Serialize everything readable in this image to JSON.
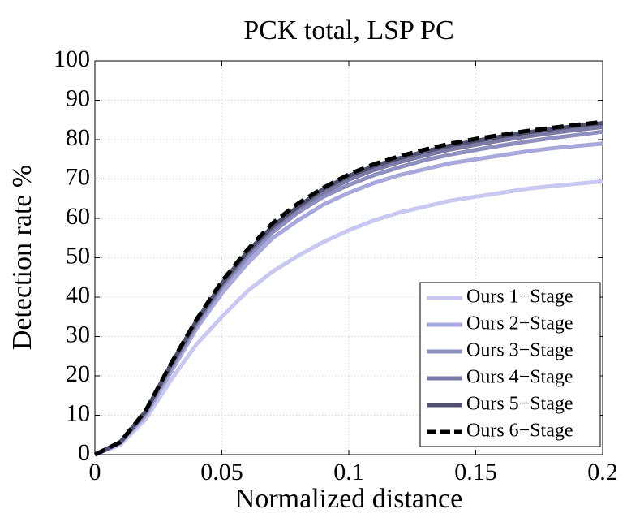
{
  "chart_data": {
    "type": "line",
    "title": "PCK total, LSP PC",
    "xlabel": "Normalized distance",
    "ylabel": "Detection rate %",
    "x": [
      0,
      0.01,
      0.02,
      0.03,
      0.04,
      0.05,
      0.06,
      0.07,
      0.08,
      0.09,
      0.1,
      0.11,
      0.12,
      0.13,
      0.14,
      0.15,
      0.16,
      0.17,
      0.18,
      0.19,
      0.2
    ],
    "series": [
      {
        "name": "Ours 1−Stage",
        "color": "#c8c8f0",
        "values": [
          0,
          2.5,
          9,
          19,
          28,
          35,
          41.5,
          46.5,
          50.5,
          54,
          57,
          59.5,
          61.5,
          63,
          64.5,
          65.5,
          66.5,
          67.5,
          68.2,
          68.8,
          69.4
        ]
      },
      {
        "name": "Ours 2−Stage",
        "color": "#a8a8dc",
        "values": [
          0,
          3,
          10,
          21,
          32,
          41,
          48.5,
          55,
          59.5,
          63.5,
          66.5,
          69,
          71,
          72.5,
          74,
          75,
          76,
          77,
          77.8,
          78.4,
          79
        ]
      },
      {
        "name": "Ours 3−Stage",
        "color": "#9090c0",
        "values": [
          0,
          3,
          10.5,
          22,
          33,
          42.5,
          50,
          56.5,
          61.5,
          65.5,
          68.5,
          71,
          73,
          74.8,
          76.2,
          77.4,
          78.5,
          79.5,
          80.4,
          81.2,
          82
        ]
      },
      {
        "name": "Ours 4−Stage",
        "color": "#7a7aa4",
        "values": [
          0,
          3,
          11,
          22.5,
          33.5,
          43,
          51,
          57.5,
          62.5,
          66.5,
          69.8,
          72.3,
          74.3,
          76,
          77.5,
          78.7,
          79.8,
          80.8,
          81.7,
          82.5,
          83.2
        ]
      },
      {
        "name": "Ours 5−Stage",
        "color": "#505070",
        "values": [
          0,
          3.2,
          11,
          23,
          34,
          43.5,
          51.5,
          58,
          63,
          67.5,
          70.8,
          73.3,
          75.3,
          77,
          78.5,
          79.7,
          80.8,
          81.8,
          82.7,
          83.5,
          84.2
        ]
      },
      {
        "name": "Ours 6−Stage",
        "color": "#000000",
        "linestyle": "dashed",
        "values": [
          0,
          3.2,
          11.2,
          23.2,
          34.3,
          44,
          52,
          58.8,
          63.8,
          67.8,
          71.2,
          73.8,
          75.8,
          77.5,
          79,
          80.2,
          81.2,
          82.2,
          83,
          83.8,
          84.5
        ]
      }
    ],
    "xlim": [
      0,
      0.2
    ],
    "xticks": [
      0,
      0.05,
      0.1,
      0.15,
      0.2
    ],
    "ylim": [
      0,
      100
    ],
    "yticks": [
      0,
      10,
      20,
      30,
      40,
      50,
      60,
      70,
      80,
      90,
      100
    ],
    "grid": true,
    "legend": "lower right"
  }
}
